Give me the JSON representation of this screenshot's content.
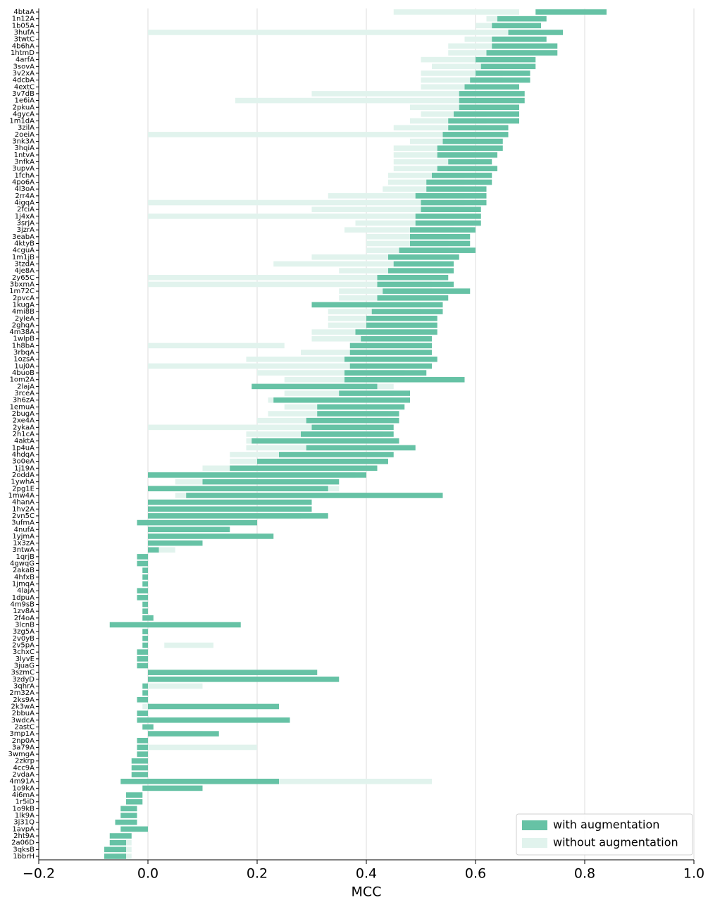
{
  "chart_data": {
    "type": "box_range",
    "x_label": "MCC",
    "xlim": [
      -0.2,
      1.0
    ],
    "xticks": [
      {
        "value": -0.2,
        "label": "−0.2"
      },
      {
        "value": 0.0,
        "label": "0.0"
      },
      0.2,
      0.4,
      0.6,
      0.8,
      {
        "value": 1.0,
        "label": "1.0"
      }
    ],
    "grid": true,
    "legend": "lower right",
    "categories": [
      "4btaA",
      "1n12A",
      "1b05A",
      "3hufA",
      "3twtC",
      "4b6hA",
      "1htmD",
      "4arfA",
      "3sovA",
      "3v2xA",
      "4dcbA",
      "4extC",
      "3v7dB",
      "1e6iA",
      "2pkuA",
      "4gycA",
      "1m1dA",
      "3zilA",
      "2oeiA",
      "3nk3A",
      "3hqiA",
      "1ntvA",
      "3nfkA",
      "3upvA",
      "1fchA",
      "4po6A",
      "4l3oA",
      "2rr4A",
      "4igqA",
      "2fciA",
      "1j4xA",
      "3srjA",
      "3jzrA",
      "3eabA",
      "4ktyB",
      "4cguA",
      "1m1jB",
      "3tzdA",
      "4je8A",
      "2y65C",
      "3bxmA",
      "1m72C",
      "2pvcA",
      "1kugA",
      "4mi8B",
      "2yleA",
      "2ghqA",
      "4m38A",
      "1wlpB",
      "1h8bA",
      "3rbqA",
      "1ozsA",
      "1uj0A",
      "4buoB",
      "1om2A",
      "2lajA",
      "3rceA",
      "3h6zA",
      "1emuA",
      "2bugA",
      "2xe4A",
      "2ykaA",
      "2h1cA",
      "4aktA",
      "1p4uA",
      "4hdqA",
      "3o0eA",
      "1j19A",
      "2oddA",
      "1ywhA",
      "2pg1E",
      "1mw4A",
      "4hanA",
      "1hv2A",
      "2vn5C",
      "3ufmA",
      "4nufA",
      "1yjmA",
      "1x3zA",
      "3ntwA",
      "1qrjB",
      "4gwqG",
      "2akaB",
      "4hfxB",
      "1jmqA",
      "4lajA",
      "1dpuA",
      "4m9sB",
      "1zv8A",
      "2f4oA",
      "3lcnB",
      "3zg5A",
      "2v0yB",
      "2v5pA",
      "3chxC",
      "3lyvE",
      "3juaG",
      "3szmC",
      "3zdyD",
      "3qhrA",
      "2m32A",
      "2ks9A",
      "2k3wA",
      "2bbuA",
      "3wdcA",
      "2astC",
      "3mp1A",
      "2np0A",
      "3a79A",
      "3wmgA",
      "2zkrp",
      "4cc9A",
      "2vdaA",
      "4m91A",
      "1o9kA",
      "4i6mA",
      "1r5iD",
      "1o9kB",
      "1lk9A",
      "3j31Q",
      "1avpA",
      "2ht9A",
      "2a06D",
      "3qksB",
      "1bbrH"
    ],
    "series": [
      {
        "name": "without augmentation",
        "color": "#e1f3ed",
        "values": [
          [
            0.45,
            0.68
          ],
          [
            0.62,
            0.72
          ],
          [
            0.6,
            0.7
          ],
          [
            0.0,
            0.66
          ],
          [
            0.58,
            0.7
          ],
          [
            0.55,
            0.7
          ],
          [
            0.55,
            0.7
          ],
          [
            0.5,
            0.66
          ],
          [
            0.52,
            0.65
          ],
          [
            0.5,
            0.65
          ],
          [
            0.5,
            0.65
          ],
          [
            0.5,
            0.63
          ],
          [
            0.3,
            0.6
          ],
          [
            0.16,
            0.6
          ],
          [
            0.48,
            0.62
          ],
          [
            0.5,
            0.62
          ],
          [
            0.48,
            0.62
          ],
          [
            0.45,
            0.62
          ],
          [
            0.0,
            0.6
          ],
          [
            0.48,
            0.6
          ],
          [
            0.45,
            0.6
          ],
          [
            0.45,
            0.6
          ],
          [
            0.45,
            0.6
          ],
          [
            0.45,
            0.6
          ],
          [
            0.44,
            0.58
          ],
          [
            0.44,
            0.58
          ],
          [
            0.43,
            0.58
          ],
          [
            0.33,
            0.58
          ],
          [
            0.0,
            0.58
          ],
          [
            0.3,
            0.57
          ],
          [
            0.0,
            0.56
          ],
          [
            0.38,
            0.56
          ],
          [
            0.36,
            0.56
          ],
          [
            0.4,
            0.55
          ],
          [
            0.4,
            0.55
          ],
          [
            0.4,
            0.55
          ],
          [
            0.3,
            0.55
          ],
          [
            0.23,
            0.54
          ],
          [
            0.35,
            0.53
          ],
          [
            0.0,
            0.52
          ],
          [
            0.0,
            0.52
          ],
          [
            0.35,
            0.52
          ],
          [
            0.35,
            0.52
          ],
          [
            0.3,
            0.5
          ],
          [
            0.33,
            0.5
          ],
          [
            0.33,
            0.5
          ],
          [
            0.33,
            0.5
          ],
          [
            0.3,
            0.5
          ],
          [
            0.3,
            0.48
          ],
          [
            0.0,
            0.25
          ],
          [
            0.28,
            0.48
          ],
          [
            0.18,
            0.48
          ],
          [
            0.0,
            0.48
          ],
          [
            0.2,
            0.47
          ],
          [
            0.25,
            0.47
          ],
          [
            0.2,
            0.45
          ],
          [
            0.25,
            0.45
          ],
          [
            0.22,
            0.45
          ],
          [
            0.25,
            0.45
          ],
          [
            0.22,
            0.44
          ],
          [
            0.2,
            0.44
          ],
          [
            0.0,
            0.35
          ],
          [
            0.18,
            0.43
          ],
          [
            0.18,
            0.43
          ],
          [
            0.18,
            0.42
          ],
          [
            0.15,
            0.42
          ],
          [
            0.15,
            0.4
          ],
          [
            0.1,
            0.4
          ],
          [
            0.0,
            0.38
          ],
          [
            0.05,
            0.35
          ],
          [
            0.0,
            0.35
          ],
          [
            0.05,
            0.4
          ],
          [
            0.0,
            0.3
          ],
          [
            0.0,
            0.3
          ],
          [
            0.0,
            0.28
          ],
          [
            -0.02,
            0.2
          ],
          [
            0.0,
            0.15
          ],
          [
            0.0,
            0.1
          ],
          [
            0.0,
            0.08
          ],
          [
            0.0,
            0.05
          ],
          [
            -0.02,
            0.0
          ],
          [
            -0.02,
            0.0
          ],
          [
            -0.01,
            0.0
          ],
          [
            -0.01,
            0.0
          ],
          [
            -0.01,
            0.0
          ],
          [
            -0.02,
            0.0
          ],
          [
            -0.02,
            0.0
          ],
          [
            -0.01,
            0.0
          ],
          [
            -0.01,
            0.0
          ],
          [
            -0.01,
            0.01
          ],
          [
            0.0,
            0.15
          ],
          [
            -0.01,
            0.0
          ],
          [
            -0.01,
            0.0
          ],
          [
            0.03,
            0.12
          ],
          [
            -0.02,
            0.0
          ],
          [
            -0.02,
            0.0
          ],
          [
            -0.02,
            0.0
          ],
          [
            0.0,
            0.1
          ],
          [
            0.0,
            0.1
          ],
          [
            0.0,
            0.1
          ],
          [
            -0.01,
            0.0
          ],
          [
            -0.02,
            0.0
          ],
          [
            -0.01,
            0.0
          ],
          [
            -0.02,
            0.0
          ],
          [
            -0.02,
            0.2
          ],
          [
            -0.01,
            0.01
          ],
          [
            0.0,
            0.1
          ],
          [
            -0.02,
            0.0
          ],
          [
            0.0,
            0.2
          ],
          [
            -0.02,
            0.0
          ],
          [
            -0.03,
            0.0
          ],
          [
            -0.03,
            0.0
          ],
          [
            -0.03,
            0.0
          ],
          [
            0.0,
            0.52
          ],
          [
            0.0,
            0.1
          ],
          [
            -0.04,
            -0.01
          ],
          [
            -0.04,
            -0.01
          ],
          [
            -0.05,
            -0.02
          ],
          [
            -0.05,
            -0.02
          ],
          [
            -0.05,
            -0.02
          ],
          [
            -0.02,
            0.0
          ],
          [
            -0.06,
            -0.03
          ],
          [
            -0.06,
            -0.03
          ],
          [
            -0.06,
            -0.03
          ],
          [
            -0.06,
            -0.03
          ]
        ]
      },
      {
        "name": "with augmentation",
        "color": "#66c2a5",
        "values": [
          [
            0.71,
            0.84
          ],
          [
            0.64,
            0.73
          ],
          [
            0.63,
            0.72
          ],
          [
            0.66,
            0.76
          ],
          [
            0.63,
            0.73
          ],
          [
            0.63,
            0.75
          ],
          [
            0.62,
            0.75
          ],
          [
            0.6,
            0.71
          ],
          [
            0.61,
            0.71
          ],
          [
            0.6,
            0.7
          ],
          [
            0.59,
            0.7
          ],
          [
            0.58,
            0.68
          ],
          [
            0.57,
            0.69
          ],
          [
            0.57,
            0.69
          ],
          [
            0.57,
            0.68
          ],
          [
            0.56,
            0.68
          ],
          [
            0.55,
            0.68
          ],
          [
            0.55,
            0.66
          ],
          [
            0.54,
            0.66
          ],
          [
            0.54,
            0.65
          ],
          [
            0.53,
            0.65
          ],
          [
            0.53,
            0.64
          ],
          [
            0.55,
            0.63
          ],
          [
            0.53,
            0.64
          ],
          [
            0.52,
            0.63
          ],
          [
            0.51,
            0.63
          ],
          [
            0.51,
            0.62
          ],
          [
            0.49,
            0.62
          ],
          [
            0.5,
            0.62
          ],
          [
            0.5,
            0.61
          ],
          [
            0.49,
            0.61
          ],
          [
            0.49,
            0.61
          ],
          [
            0.48,
            0.6
          ],
          [
            0.48,
            0.59
          ],
          [
            0.48,
            0.59
          ],
          [
            0.46,
            0.6
          ],
          [
            0.44,
            0.57
          ],
          [
            0.45,
            0.56
          ],
          [
            0.44,
            0.56
          ],
          [
            0.42,
            0.55
          ],
          [
            0.42,
            0.56
          ],
          [
            0.43,
            0.59
          ],
          [
            0.42,
            0.55
          ],
          [
            0.3,
            0.54
          ],
          [
            0.41,
            0.54
          ],
          [
            0.4,
            0.53
          ],
          [
            0.4,
            0.53
          ],
          [
            0.38,
            0.53
          ],
          [
            0.39,
            0.52
          ],
          [
            0.37,
            0.52
          ],
          [
            0.37,
            0.52
          ],
          [
            0.36,
            0.53
          ],
          [
            0.37,
            0.52
          ],
          [
            0.36,
            0.51
          ],
          [
            0.36,
            0.58
          ],
          [
            0.19,
            0.42
          ],
          [
            0.35,
            0.48
          ],
          [
            0.23,
            0.48
          ],
          [
            0.31,
            0.47
          ],
          [
            0.31,
            0.46
          ],
          [
            0.29,
            0.46
          ],
          [
            0.3,
            0.45
          ],
          [
            0.28,
            0.45
          ],
          [
            0.19,
            0.46
          ],
          [
            0.29,
            0.49
          ],
          [
            0.24,
            0.45
          ],
          [
            0.2,
            0.44
          ],
          [
            0.15,
            0.42
          ],
          [
            0.0,
            0.4
          ],
          [
            0.1,
            0.35
          ],
          [
            0.0,
            0.33
          ],
          [
            0.07,
            0.54
          ],
          [
            0.0,
            0.3
          ],
          [
            0.0,
            0.3
          ],
          [
            0.0,
            0.33
          ],
          [
            -0.02,
            0.2
          ],
          [
            0.0,
            0.15
          ],
          [
            0.0,
            0.23
          ],
          [
            0.0,
            0.1
          ],
          [
            0.0,
            0.02
          ],
          [
            -0.02,
            0.0
          ],
          [
            -0.02,
            0.0
          ],
          [
            -0.01,
            0.0
          ],
          [
            -0.01,
            0.0
          ],
          [
            -0.01,
            0.0
          ],
          [
            -0.02,
            0.0
          ],
          [
            -0.02,
            0.0
          ],
          [
            -0.01,
            0.0
          ],
          [
            -0.01,
            0.0
          ],
          [
            -0.01,
            0.01
          ],
          [
            -0.07,
            0.17
          ],
          [
            -0.01,
            0.0
          ],
          [
            -0.01,
            0.0
          ],
          [
            -0.01,
            0.0
          ],
          [
            -0.02,
            0.0
          ],
          [
            -0.02,
            0.0
          ],
          [
            -0.02,
            0.0
          ],
          [
            0.0,
            0.31
          ],
          [
            0.0,
            0.35
          ],
          [
            -0.01,
            0.0
          ],
          [
            -0.01,
            0.0
          ],
          [
            -0.02,
            0.0
          ],
          [
            0.0,
            0.24
          ],
          [
            -0.02,
            0.0
          ],
          [
            -0.02,
            0.26
          ],
          [
            -0.01,
            0.01
          ],
          [
            0.0,
            0.13
          ],
          [
            -0.02,
            0.0
          ],
          [
            -0.02,
            0.0
          ],
          [
            -0.02,
            0.0
          ],
          [
            -0.03,
            0.0
          ],
          [
            -0.03,
            0.0
          ],
          [
            -0.03,
            0.0
          ],
          [
            -0.05,
            0.24
          ],
          [
            -0.01,
            0.1
          ],
          [
            -0.04,
            -0.01
          ],
          [
            -0.04,
            -0.01
          ],
          [
            -0.05,
            -0.02
          ],
          [
            -0.05,
            -0.02
          ],
          [
            -0.06,
            -0.02
          ],
          [
            -0.05,
            0.0
          ],
          [
            -0.07,
            -0.03
          ],
          [
            -0.07,
            -0.04
          ],
          [
            -0.08,
            -0.04
          ],
          [
            -0.08,
            -0.04
          ]
        ]
      }
    ]
  }
}
